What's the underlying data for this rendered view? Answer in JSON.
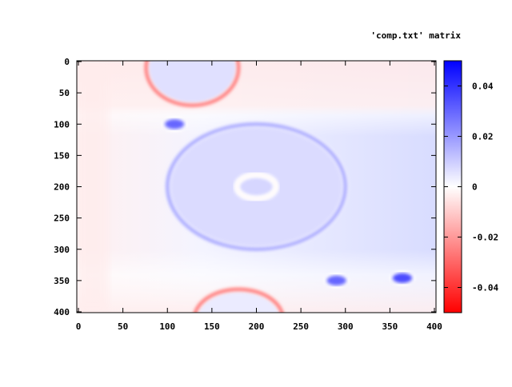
{
  "chart_data": {
    "type": "heatmap",
    "title": "'comp.txt' matrix",
    "xlim": [
      0,
      400
    ],
    "ylim": [
      0,
      400
    ],
    "y_inverted": true,
    "x_ticks": [
      "0",
      "50",
      "100",
      "150",
      "200",
      "250",
      "300",
      "350",
      "400"
    ],
    "y_ticks": [
      "0",
      "50",
      "100",
      "150",
      "200",
      "250",
      "300",
      "350",
      "400"
    ],
    "colorbar": {
      "range": [
        -0.05,
        0.05
      ],
      "ticks": [
        "0.04",
        "0.02",
        "0",
        "-0.02",
        "-0.04"
      ],
      "tick_values": [
        0.04,
        0.02,
        0,
        -0.02,
        -0.04
      ],
      "low_color": "#ff0000",
      "mid_color": "#ffffff",
      "high_color": "#0000ff"
    },
    "features": [
      {
        "kind": "ring",
        "cx": 128,
        "cy": 10,
        "rx": 52,
        "ry": 60,
        "ring_value": -0.03,
        "inner_value": 0.006
      },
      {
        "kind": "ring",
        "cx": 200,
        "cy": 200,
        "rx": 100,
        "ry": 100,
        "ring_value": 0.02,
        "inner_value": 0.007
      },
      {
        "kind": "ring",
        "cx": 200,
        "cy": 200,
        "rx": 22,
        "ry": 19,
        "ring_value": -0.001,
        "inner_value": 0.008
      },
      {
        "kind": "ring",
        "cx": 180,
        "cy": 412,
        "rx": 50,
        "ry": 48,
        "ring_value": -0.03,
        "inner_value": 0.004
      },
      {
        "kind": "blob",
        "cx": 108,
        "cy": 100,
        "rx": 11,
        "ry": 8,
        "value": 0.03
      },
      {
        "kind": "blob",
        "cx": 290,
        "cy": 350,
        "rx": 11,
        "ry": 8,
        "value": 0.03
      },
      {
        "kind": "blob",
        "cx": 364,
        "cy": 346,
        "rx": 11,
        "ry": 8,
        "value": 0.035
      }
    ]
  }
}
